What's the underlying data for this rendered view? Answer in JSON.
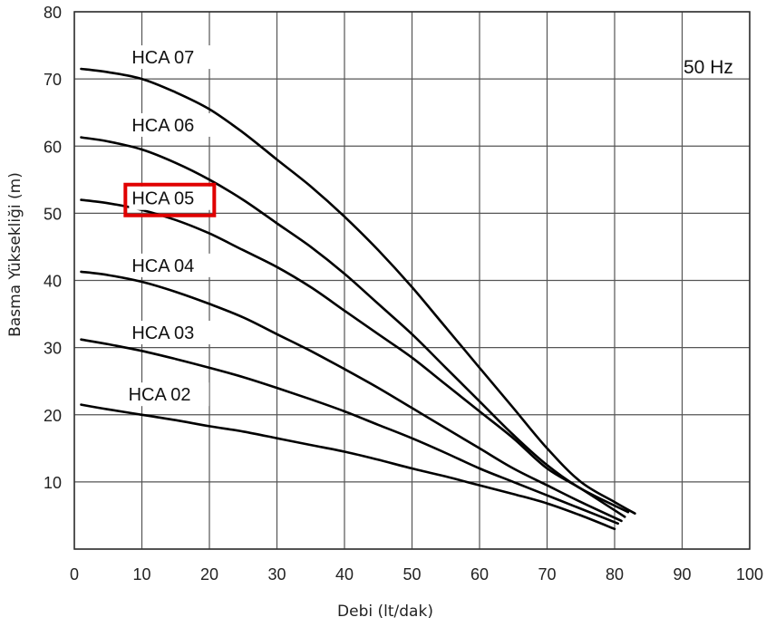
{
  "chart_data": {
    "type": "line",
    "annotation": "50 Hz",
    "xlabel": "Debi (lt/dak)",
    "ylabel": "Basma Yüksekliği (m)",
    "xlim": [
      0,
      100
    ],
    "ylim": [
      0,
      80
    ],
    "x_ticks": [
      "0",
      "10",
      "20",
      "30",
      "40",
      "50",
      "60",
      "70",
      "80",
      "90",
      "100"
    ],
    "y_ticks": [
      "10",
      "20",
      "30",
      "40",
      "50",
      "60",
      "70",
      "80"
    ],
    "grid": true,
    "highlighted_series": "HCA 05",
    "highlight_color": "#e00000",
    "line_color": "#000000",
    "series": [
      {
        "name": "HCA 07",
        "x": [
          1,
          5,
          10,
          15,
          20,
          25,
          30,
          35,
          40,
          45,
          50,
          55,
          60,
          65,
          70,
          75,
          80,
          83
        ],
        "y": [
          71.5,
          71,
          70,
          68,
          65.5,
          62,
          58,
          54,
          49.5,
          44.5,
          39,
          33,
          27,
          21,
          15,
          10,
          7,
          5.3
        ]
      },
      {
        "name": "HCA 06",
        "x": [
          1,
          5,
          10,
          15,
          20,
          25,
          30,
          35,
          40,
          45,
          50,
          55,
          60,
          65,
          70,
          75,
          82
        ],
        "y": [
          61.3,
          60.7,
          59.5,
          57.5,
          55,
          52,
          48.5,
          45,
          41,
          36.5,
          32,
          27,
          22,
          17,
          12.5,
          9,
          5.5
        ]
      },
      {
        "name": "HCA 05",
        "x": [
          1,
          5,
          10,
          15,
          20,
          25,
          30,
          35,
          40,
          45,
          50,
          55,
          60,
          65,
          70,
          75,
          81.5
        ],
        "y": [
          52,
          51.5,
          50.5,
          49,
          47,
          44.5,
          42,
          39,
          35.5,
          32,
          28.5,
          24.5,
          20.5,
          16.5,
          12,
          9,
          4.8
        ]
      },
      {
        "name": "HCA 04",
        "x": [
          1,
          5,
          10,
          15,
          20,
          25,
          30,
          35,
          40,
          45,
          50,
          55,
          60,
          65,
          70,
          75,
          81
        ],
        "y": [
          41.3,
          40.8,
          39.8,
          38.3,
          36.5,
          34.5,
          32,
          29.5,
          26.8,
          24,
          21,
          18,
          15,
          12,
          9.5,
          7,
          4.2
        ]
      },
      {
        "name": "HCA 03",
        "x": [
          1,
          5,
          10,
          15,
          20,
          25,
          30,
          35,
          40,
          45,
          50,
          55,
          60,
          65,
          70,
          75,
          80.5
        ],
        "y": [
          31.2,
          30.5,
          29.5,
          28.3,
          27,
          25.6,
          24,
          22.3,
          20.5,
          18.5,
          16.5,
          14.3,
          12,
          10,
          8,
          6,
          3.8
        ]
      },
      {
        "name": "HCA 02",
        "x": [
          1,
          5,
          10,
          15,
          20,
          25,
          30,
          35,
          40,
          45,
          50,
          55,
          60,
          65,
          70,
          75,
          80
        ],
        "y": [
          21.5,
          20.8,
          20,
          19.2,
          18.3,
          17.5,
          16.5,
          15.5,
          14.5,
          13.3,
          12,
          10.8,
          9.5,
          8.2,
          6.8,
          5,
          3
        ]
      }
    ],
    "curve_labels": [
      {
        "text": "HCA 07",
        "x": 8.5,
        "y": 72.3
      },
      {
        "text": "HCA 06",
        "x": 8.5,
        "y": 62.2
      },
      {
        "text": "HCA 05",
        "x": 8.5,
        "y": 51.3
      },
      {
        "text": "HCA 04",
        "x": 8.5,
        "y": 41.3
      },
      {
        "text": "HCA 03",
        "x": 8.5,
        "y": 31.3
      },
      {
        "text": "HCA 02",
        "x": 8.0,
        "y": 22.1
      }
    ]
  }
}
